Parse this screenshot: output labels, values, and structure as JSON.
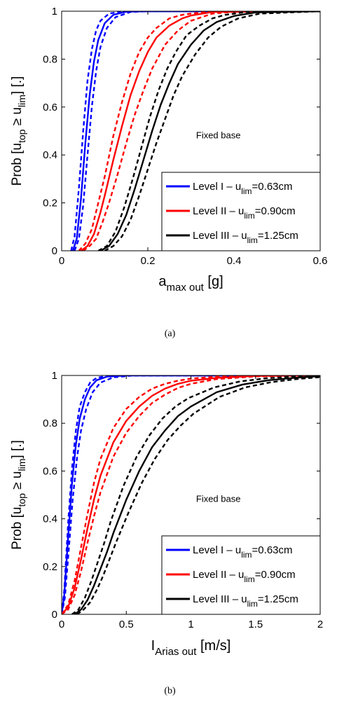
{
  "chart_data": [
    {
      "type": "line",
      "caption": "(a)",
      "annotation": "Fixed base",
      "xlabel": {
        "main": "a",
        "sub": "max out",
        "unit": " [g]"
      },
      "ylabel": {
        "p1": "Prob [u",
        "s1": "top",
        "p2": " ≥ u",
        "s2": "lim",
        "p3": "] [.]"
      },
      "xlim": [
        0,
        0.6
      ],
      "ylim": [
        0,
        1
      ],
      "xticks": [
        0,
        0.2,
        0.4,
        0.6
      ],
      "xtick_labels": [
        "0",
        "0.2",
        "0.4",
        "0.6"
      ],
      "yticks": [
        0,
        0.2,
        0.4,
        0.6,
        0.8,
        1
      ],
      "ytick_labels": [
        "0",
        "0.2",
        "0.4",
        "0.6",
        "0.8",
        "1"
      ],
      "legend_position": "bottom-right",
      "series": [
        {
          "name": "Level I – u",
          "name_sub": "lim",
          "name_suffix": "=0.63cm",
          "color": "#0000ff",
          "x": [
            0.026,
            0.035,
            0.045,
            0.055,
            0.065,
            0.075,
            0.085,
            0.1,
            0.12,
            0.15,
            0.2,
            0.6
          ],
          "y": [
            0.0,
            0.05,
            0.22,
            0.45,
            0.65,
            0.79,
            0.88,
            0.95,
            0.985,
            0.998,
            1.0,
            1.0
          ],
          "bounds": [
            {
              "x": [
                0.022,
                0.03,
                0.04,
                0.05,
                0.06,
                0.07,
                0.08,
                0.09,
                0.11,
                0.14,
                0.2,
                0.6
              ],
              "y": [
                0.0,
                0.06,
                0.26,
                0.5,
                0.71,
                0.84,
                0.92,
                0.96,
                0.99,
                0.999,
                1.0,
                1.0
              ]
            },
            {
              "x": [
                0.03,
                0.04,
                0.05,
                0.06,
                0.07,
                0.08,
                0.09,
                0.105,
                0.125,
                0.16,
                0.2,
                0.6
              ],
              "y": [
                0.0,
                0.05,
                0.19,
                0.4,
                0.6,
                0.75,
                0.85,
                0.93,
                0.975,
                0.997,
                1.0,
                1.0
              ]
            }
          ]
        },
        {
          "name": "Level II – u",
          "name_sub": "lim",
          "name_suffix": "=0.90cm",
          "color": "#ff0000",
          "x": [
            0.045,
            0.06,
            0.075,
            0.09,
            0.1,
            0.12,
            0.14,
            0.16,
            0.18,
            0.2,
            0.22,
            0.25,
            0.28,
            0.3,
            0.35,
            0.6
          ],
          "y": [
            0.0,
            0.02,
            0.07,
            0.16,
            0.23,
            0.38,
            0.52,
            0.65,
            0.75,
            0.83,
            0.89,
            0.94,
            0.97,
            0.982,
            0.997,
            1.0
          ],
          "bounds": [
            {
              "x": [
                0.04,
                0.055,
                0.07,
                0.085,
                0.1,
                0.12,
                0.14,
                0.16,
                0.18,
                0.2,
                0.22,
                0.25,
                0.28,
                0.3,
                0.35,
                0.6
              ],
              "y": [
                0.0,
                0.03,
                0.09,
                0.2,
                0.31,
                0.48,
                0.62,
                0.74,
                0.83,
                0.89,
                0.93,
                0.97,
                0.985,
                0.99,
                0.999,
                1.0
              ]
            },
            {
              "x": [
                0.05,
                0.065,
                0.08,
                0.095,
                0.11,
                0.13,
                0.15,
                0.17,
                0.19,
                0.21,
                0.24,
                0.27,
                0.3,
                0.35,
                0.4,
                0.6
              ],
              "y": [
                0.0,
                0.02,
                0.05,
                0.12,
                0.2,
                0.32,
                0.45,
                0.57,
                0.67,
                0.76,
                0.86,
                0.92,
                0.96,
                0.99,
                0.998,
                1.0
              ]
            }
          ]
        },
        {
          "name": "Level III – u",
          "name_sub": "lim",
          "name_suffix": "=1.25cm",
          "color": "#000000",
          "x": [
            0.09,
            0.11,
            0.13,
            0.15,
            0.17,
            0.19,
            0.21,
            0.23,
            0.25,
            0.27,
            0.3,
            0.33,
            0.36,
            0.4,
            0.45,
            0.6
          ],
          "y": [
            0.0,
            0.02,
            0.07,
            0.15,
            0.26,
            0.38,
            0.5,
            0.61,
            0.7,
            0.78,
            0.86,
            0.92,
            0.955,
            0.98,
            0.995,
            1.0
          ],
          "bounds": [
            {
              "x": [
                0.085,
                0.105,
                0.125,
                0.145,
                0.165,
                0.185,
                0.205,
                0.225,
                0.245,
                0.265,
                0.29,
                0.32,
                0.35,
                0.38,
                0.43,
                0.6
              ],
              "y": [
                0.0,
                0.02,
                0.08,
                0.18,
                0.3,
                0.43,
                0.56,
                0.67,
                0.76,
                0.83,
                0.9,
                0.94,
                0.97,
                0.985,
                0.997,
                1.0
              ]
            },
            {
              "x": [
                0.1,
                0.12,
                0.14,
                0.16,
                0.18,
                0.2,
                0.22,
                0.24,
                0.26,
                0.28,
                0.31,
                0.34,
                0.37,
                0.41,
                0.46,
                0.6
              ],
              "y": [
                0.0,
                0.02,
                0.06,
                0.13,
                0.23,
                0.34,
                0.45,
                0.55,
                0.65,
                0.73,
                0.82,
                0.89,
                0.935,
                0.97,
                0.99,
                1.0
              ]
            }
          ]
        }
      ]
    },
    {
      "type": "line",
      "caption": "(b)",
      "annotation": "Fixed base",
      "xlabel": {
        "main": "I",
        "sub": "Arias out",
        "unit": " [m/s]"
      },
      "ylabel": {
        "p1": "Prob [u",
        "s1": "top",
        "p2": " ≥ u",
        "s2": "lim",
        "p3": "] [.]"
      },
      "xlim": [
        0,
        2
      ],
      "ylim": [
        0,
        1
      ],
      "xticks": [
        0,
        0.5,
        1,
        1.5,
        2
      ],
      "xtick_labels": [
        "0",
        "0.5",
        "1",
        "1.5",
        "2"
      ],
      "yticks": [
        0,
        0.2,
        0.4,
        0.6,
        0.8,
        1
      ],
      "ytick_labels": [
        "0",
        "0.2",
        "0.4",
        "0.6",
        "0.8",
        "1"
      ],
      "legend_position": "bottom-right",
      "series": [
        {
          "name": "Level I – u",
          "name_sub": "lim",
          "name_suffix": "=0.63cm",
          "color": "#0000ff",
          "x": [
            0.0,
            0.02,
            0.05,
            0.08,
            0.11,
            0.14,
            0.18,
            0.22,
            0.27,
            0.35,
            0.5,
            2.0
          ],
          "y": [
            0.0,
            0.08,
            0.32,
            0.55,
            0.71,
            0.82,
            0.9,
            0.95,
            0.98,
            0.995,
            1.0,
            1.0
          ],
          "bounds": [
            {
              "x": [
                0.0,
                0.02,
                0.05,
                0.08,
                0.11,
                0.14,
                0.18,
                0.22,
                0.27,
                0.35,
                0.5,
                2.0
              ],
              "y": [
                0.0,
                0.1,
                0.38,
                0.61,
                0.77,
                0.87,
                0.93,
                0.97,
                0.99,
                0.998,
                1.0,
                1.0
              ]
            },
            {
              "x": [
                0.0,
                0.025,
                0.055,
                0.085,
                0.12,
                0.15,
                0.19,
                0.24,
                0.3,
                0.4,
                0.55,
                2.0
              ],
              "y": [
                0.0,
                0.07,
                0.27,
                0.48,
                0.66,
                0.77,
                0.86,
                0.93,
                0.97,
                0.992,
                1.0,
                1.0
              ]
            }
          ]
        },
        {
          "name": "Level II – u",
          "name_sub": "lim",
          "name_suffix": "=0.90cm",
          "color": "#ff0000",
          "x": [
            0.0,
            0.05,
            0.1,
            0.15,
            0.2,
            0.25,
            0.3,
            0.4,
            0.5,
            0.6,
            0.7,
            0.8,
            0.9,
            1.0,
            1.2,
            1.5,
            2.0
          ],
          "y": [
            0.0,
            0.03,
            0.11,
            0.23,
            0.36,
            0.48,
            0.58,
            0.72,
            0.81,
            0.87,
            0.915,
            0.945,
            0.965,
            0.978,
            0.99,
            0.998,
            1.0
          ],
          "bounds": [
            {
              "x": [
                0.0,
                0.05,
                0.1,
                0.15,
                0.2,
                0.25,
                0.3,
                0.4,
                0.5,
                0.6,
                0.7,
                0.8,
                0.9,
                1.0,
                1.2,
                1.5,
                2.0
              ],
              "y": [
                0.0,
                0.04,
                0.14,
                0.28,
                0.42,
                0.55,
                0.65,
                0.78,
                0.86,
                0.91,
                0.945,
                0.965,
                0.978,
                0.987,
                0.995,
                0.999,
                1.0
              ]
            },
            {
              "x": [
                0.0,
                0.05,
                0.1,
                0.15,
                0.2,
                0.25,
                0.3,
                0.4,
                0.5,
                0.6,
                0.7,
                0.8,
                0.9,
                1.0,
                1.2,
                1.5,
                2.0
              ],
              "y": [
                0.0,
                0.02,
                0.08,
                0.18,
                0.3,
                0.41,
                0.51,
                0.66,
                0.76,
                0.83,
                0.885,
                0.92,
                0.948,
                0.965,
                0.985,
                0.996,
                1.0
              ]
            }
          ]
        },
        {
          "name": "Level III – u",
          "name_sub": "lim",
          "name_suffix": "=1.25cm",
          "color": "#000000",
          "x": [
            0.1,
            0.15,
            0.2,
            0.25,
            0.3,
            0.35,
            0.4,
            0.5,
            0.6,
            0.7,
            0.8,
            0.9,
            1.0,
            1.2,
            1.4,
            1.6,
            1.8,
            2.0
          ],
          "y": [
            0.0,
            0.02,
            0.06,
            0.12,
            0.19,
            0.26,
            0.34,
            0.48,
            0.6,
            0.7,
            0.77,
            0.83,
            0.87,
            0.93,
            0.962,
            0.98,
            0.99,
            0.997
          ],
          "bounds": [
            {
              "x": [
                0.08,
                0.13,
                0.18,
                0.23,
                0.28,
                0.33,
                0.38,
                0.48,
                0.58,
                0.68,
                0.78,
                0.88,
                0.98,
                1.18,
                1.38,
                1.58,
                1.78,
                2.0
              ],
              "y": [
                0.0,
                0.02,
                0.07,
                0.14,
                0.22,
                0.3,
                0.39,
                0.54,
                0.66,
                0.75,
                0.82,
                0.87,
                0.905,
                0.95,
                0.975,
                0.988,
                0.995,
                0.999
              ]
            },
            {
              "x": [
                0.12,
                0.17,
                0.22,
                0.27,
                0.32,
                0.37,
                0.42,
                0.52,
                0.62,
                0.72,
                0.82,
                0.92,
                1.02,
                1.22,
                1.42,
                1.62,
                1.82,
                2.0
              ],
              "y": [
                0.0,
                0.02,
                0.05,
                0.1,
                0.16,
                0.23,
                0.3,
                0.43,
                0.55,
                0.65,
                0.73,
                0.79,
                0.84,
                0.91,
                0.95,
                0.972,
                0.985,
                0.993
              ]
            }
          ]
        }
      ]
    }
  ]
}
